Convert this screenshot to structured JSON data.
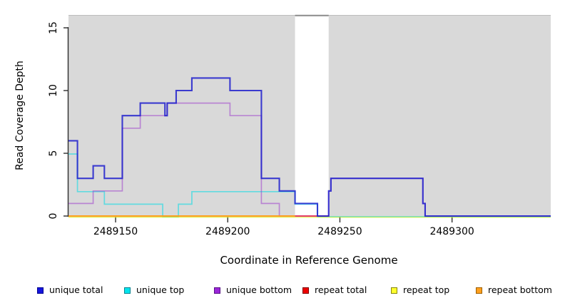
{
  "figure": {
    "xlabel": "Coordinate in Reference Genome",
    "ylabel": "Read Coverage Depth"
  },
  "legend": [
    {
      "label": "unique total",
      "fill": "#1515dd",
      "border": "#000090"
    },
    {
      "label": "unique top",
      "fill": "#00e5ee",
      "border": "#00828f"
    },
    {
      "label": "unique bottom",
      "fill": "#9b26d9",
      "border": "#571084"
    },
    {
      "label": "repeat total",
      "fill": "#ee0000",
      "border": "#7d0000"
    },
    {
      "label": "repeat top",
      "fill": "#ffff2e",
      "border": "#85850a"
    },
    {
      "label": "repeat bottom",
      "fill": "#ffa01e",
      "border": "#9c5f00"
    }
  ],
  "chart_data": {
    "type": "line",
    "subtype": "step-coverage",
    "title": "",
    "xlabel": "Coordinate in Reference Genome",
    "ylabel": "Read Coverage Depth",
    "xlim": [
      2489129,
      2489344
    ],
    "ylim": [
      0,
      16
    ],
    "xticks": [
      2489150,
      2489200,
      2489250,
      2489300
    ],
    "yticks": [
      0,
      5,
      10,
      15
    ],
    "grid": false,
    "legend_position": "bottom",
    "plot_background": "#ffffff",
    "shaded_regions": [
      {
        "name": "unique-region-left",
        "from": 2489129,
        "to": 2489230,
        "color": "#d9d9d9"
      },
      {
        "name": "unique-region-right",
        "from": 2489245,
        "to": 2489344,
        "color": "#d9d9d9"
      }
    ],
    "gap_region": {
      "name": "repeat-gap",
      "from": 2489230,
      "to": 2489245,
      "top_line_color": "#8a8a8a"
    },
    "series": [
      {
        "name": "unique total",
        "color": "#1e1ecd",
        "opacity": 0.85,
        "width": 2.1,
        "nudge": 0,
        "points": [
          [
            2489129,
            6
          ],
          [
            2489133,
            3
          ],
          [
            2489140,
            4
          ],
          [
            2489145,
            3
          ],
          [
            2489153,
            8
          ],
          [
            2489161,
            9
          ],
          [
            2489172,
            8
          ],
          [
            2489173,
            9
          ],
          [
            2489177,
            10
          ],
          [
            2489184,
            11
          ],
          [
            2489201,
            10
          ],
          [
            2489215,
            3
          ],
          [
            2489223,
            2
          ],
          [
            2489230,
            1
          ],
          [
            2489240,
            0
          ],
          [
            2489245,
            2
          ],
          [
            2489246,
            3
          ],
          [
            2489287,
            1
          ],
          [
            2489288,
            0
          ],
          [
            2489344,
            0
          ]
        ]
      },
      {
        "name": "unique top",
        "color": "#00dbe6",
        "opacity": 0.55,
        "width": 1.7,
        "nudge": 1,
        "points": [
          [
            2489129,
            5
          ],
          [
            2489133,
            2
          ],
          [
            2489145,
            1
          ],
          [
            2489171,
            0
          ],
          [
            2489178,
            1
          ],
          [
            2489184,
            2
          ],
          [
            2489230,
            1
          ],
          [
            2489240,
            0
          ],
          [
            2489344,
            0
          ]
        ]
      },
      {
        "name": "unique bottom",
        "color": "#9932cc",
        "opacity": 0.5,
        "width": 1.7,
        "nudge": 0,
        "points": [
          [
            2489129,
            1
          ],
          [
            2489140,
            2
          ],
          [
            2489153,
            7
          ],
          [
            2489161,
            8
          ],
          [
            2489173,
            9
          ],
          [
            2489201,
            8
          ],
          [
            2489215,
            1
          ],
          [
            2489223,
            0
          ],
          [
            2489245,
            2
          ],
          [
            2489246,
            3
          ],
          [
            2489287,
            1
          ],
          [
            2489288,
            0
          ],
          [
            2489344,
            0
          ]
        ]
      },
      {
        "name": "repeat total",
        "color": "#e8153c",
        "opacity": 0.85,
        "width": 1.7,
        "nudge": 0,
        "points": [
          [
            2489230,
            0
          ],
          [
            2489245,
            0
          ]
        ]
      },
      {
        "name": "repeat top",
        "color": "#d9f000",
        "opacity": 0.5,
        "width": 1.7,
        "nudge": 1.6,
        "points": [
          [
            2489129,
            0
          ],
          [
            2489344,
            0
          ]
        ]
      },
      {
        "name": "repeat bottom",
        "color": "#ff9d14",
        "opacity": 0.95,
        "width": 1.9,
        "nudge": 0,
        "points": [
          [
            2489129,
            0
          ],
          [
            2489230,
            0
          ]
        ]
      }
    ],
    "draw_order": [
      1,
      4,
      2,
      3,
      0,
      5
    ]
  },
  "layout_note": ""
}
